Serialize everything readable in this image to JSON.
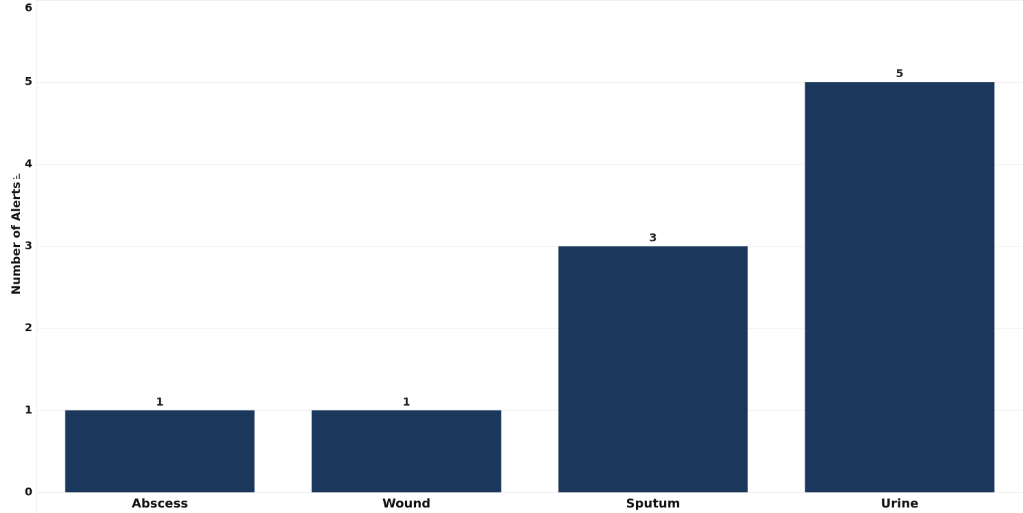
{
  "chart_data": {
    "type": "bar",
    "categories": [
      "Abscess",
      "Wound",
      "Sputum",
      "Urine"
    ],
    "values": [
      1,
      1,
      3,
      5
    ],
    "title": "",
    "xlabel": "",
    "ylabel": "Number of Alerts",
    "ylim": [
      0,
      6
    ],
    "yticks": [
      "0",
      "1",
      "2",
      "3",
      "4",
      "5",
      "6"
    ],
    "grid": true,
    "legend": "none",
    "data_labels": true,
    "bar_color": "#1b375c",
    "gridline_color": "#ececec",
    "sort_icon": "sort-icon"
  }
}
